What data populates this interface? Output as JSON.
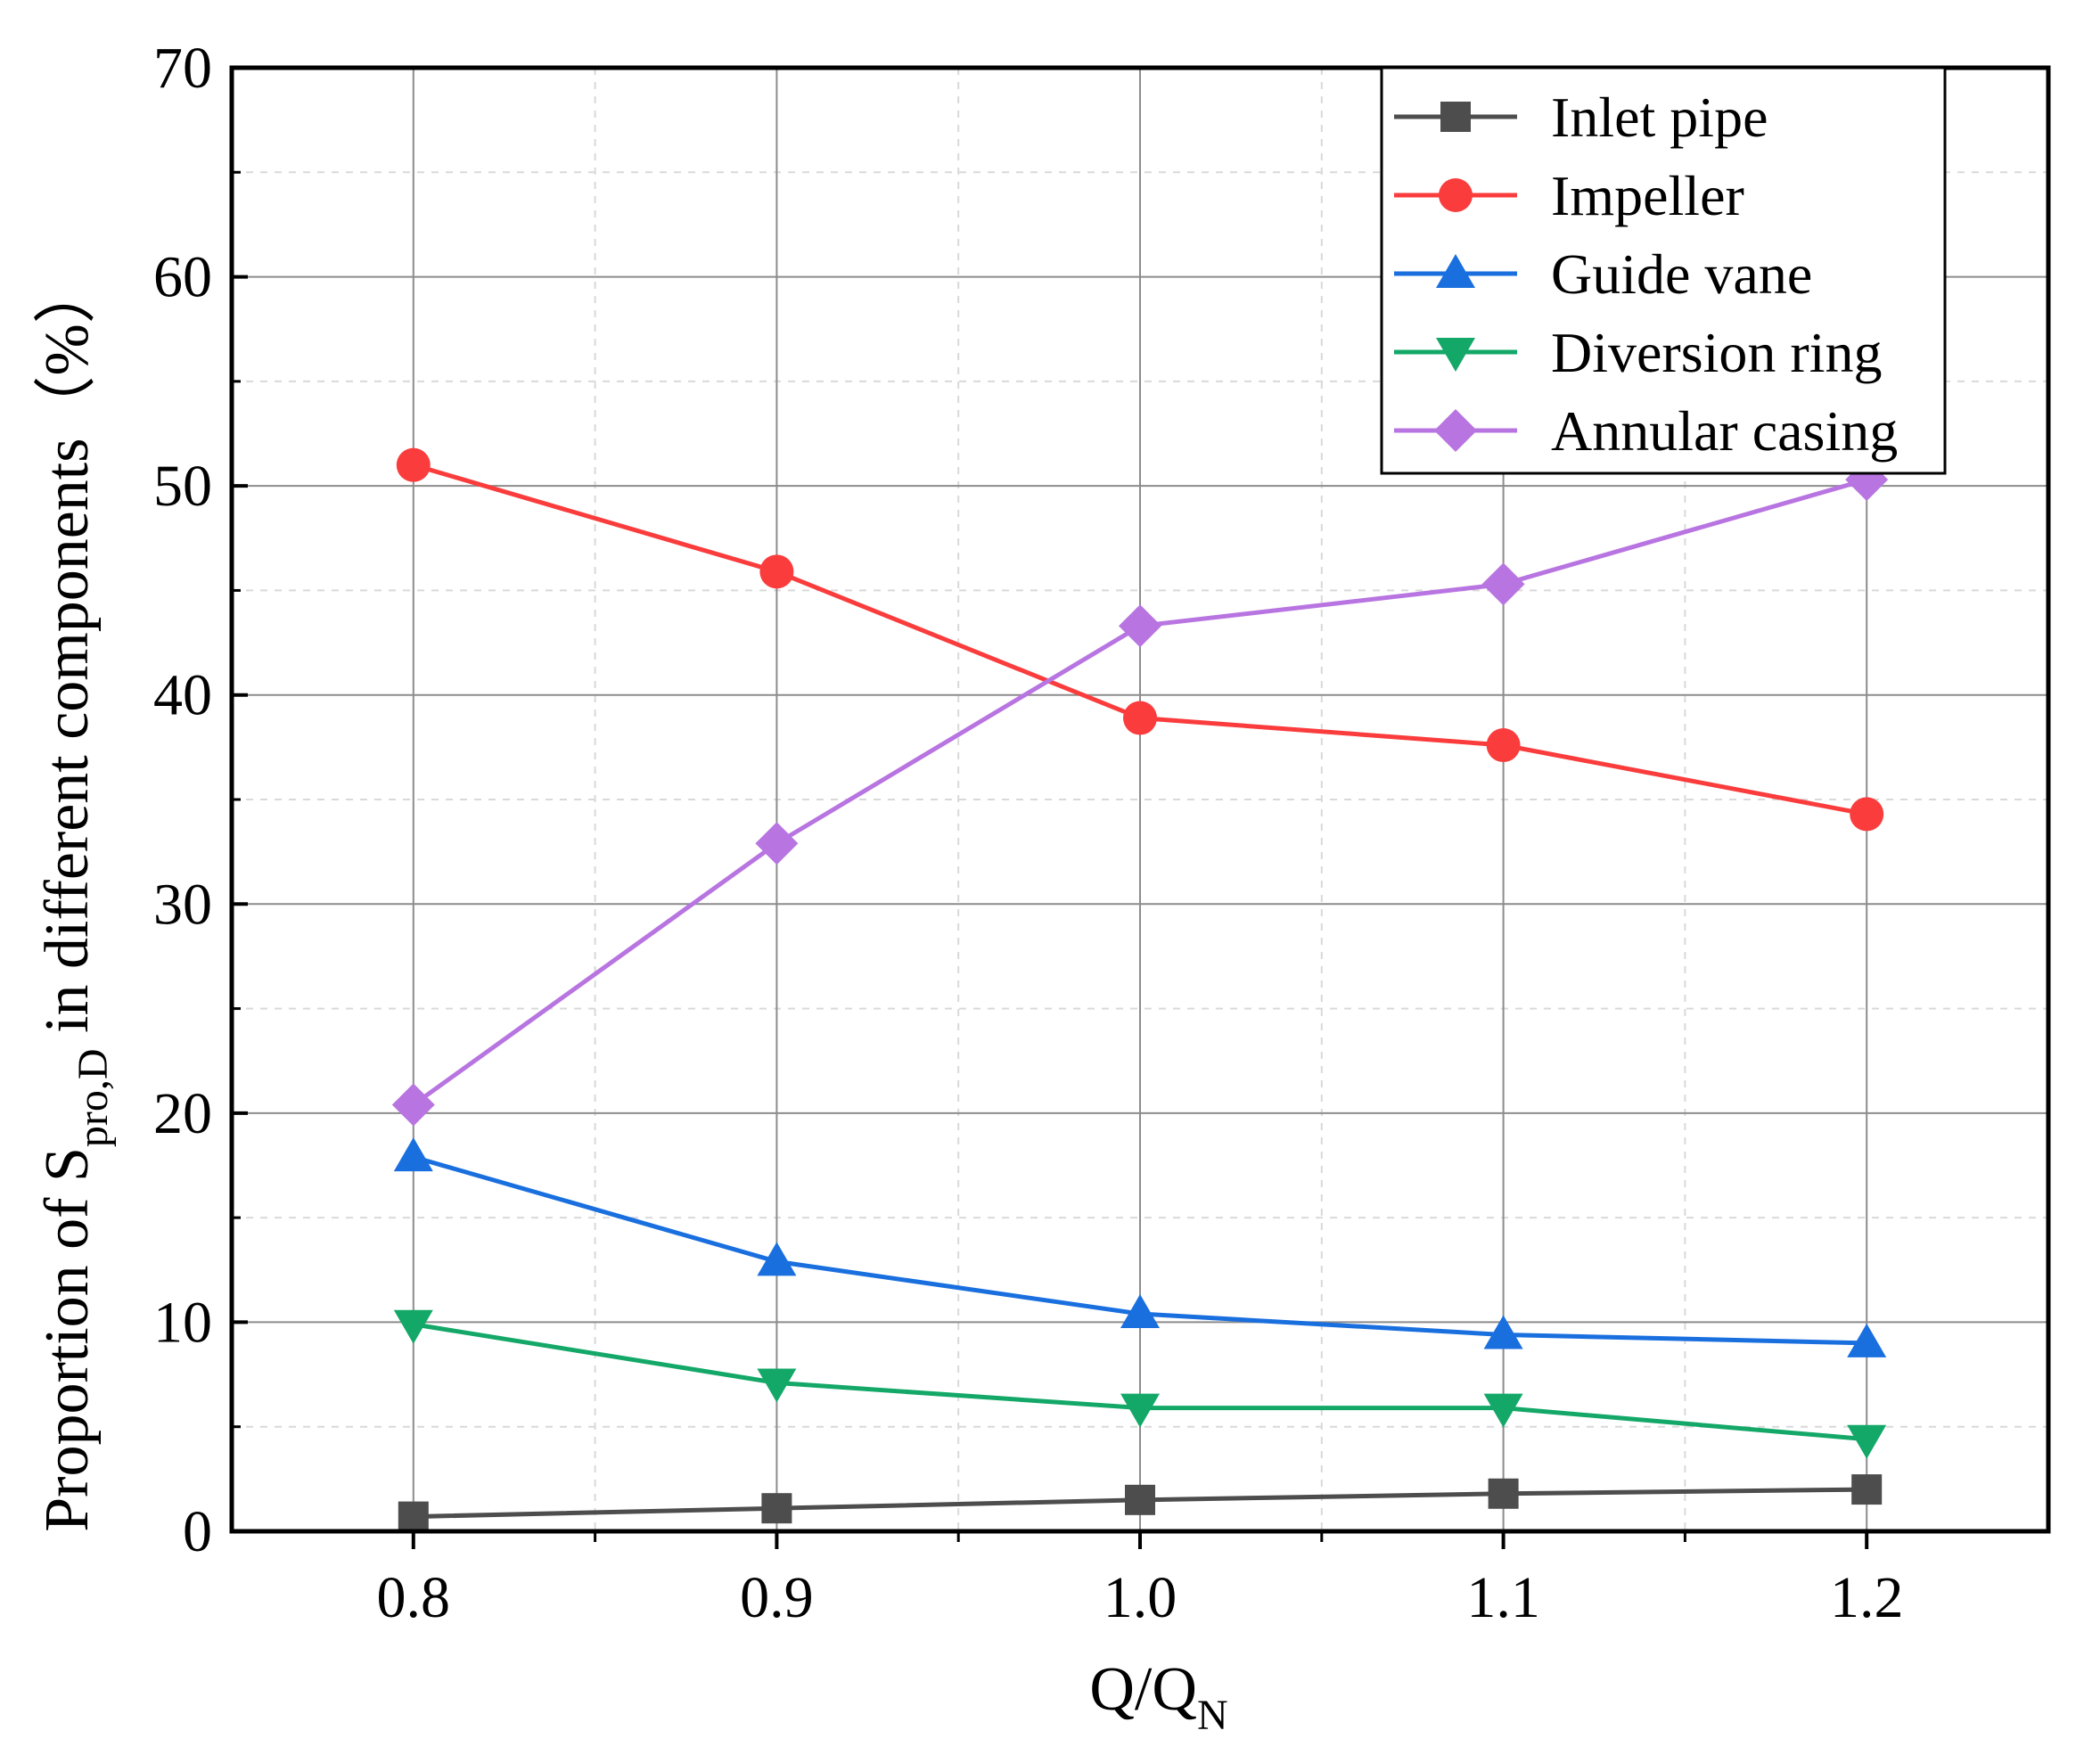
{
  "chart_data": {
    "type": "line",
    "title": "",
    "xlabel": {
      "main": "Q/Q",
      "sub": "N"
    },
    "ylabel": {
      "prefix": "Proportion of S",
      "sub": "pro,D",
      "suffix": " in different components（%）"
    },
    "x": [
      0.8,
      0.9,
      1.0,
      1.1,
      1.2
    ],
    "xticks": [
      0.8,
      0.9,
      1.0,
      1.1,
      1.2
    ],
    "xtick_labels": [
      "0.8",
      "0.9",
      "1.0",
      "1.1",
      "1.2"
    ],
    "xlim": [
      0.75,
      1.25
    ],
    "yticks": [
      0,
      10,
      20,
      30,
      40,
      50,
      60,
      70
    ],
    "ytick_labels": [
      "0",
      "10",
      "20",
      "30",
      "40",
      "50",
      "60",
      "70"
    ],
    "ylim": [
      0,
      70
    ],
    "grid": true,
    "legend_position": "top-right",
    "series": [
      {
        "name": "Inlet pipe",
        "color": "#4d4d4d",
        "marker": "square",
        "values": [
          0.7,
          1.1,
          1.5,
          1.8,
          2.0
        ]
      },
      {
        "name": "Impeller",
        "color": "#fa3c3c",
        "marker": "circle",
        "values": [
          51.0,
          45.9,
          38.9,
          37.6,
          34.3
        ]
      },
      {
        "name": "Guide vane",
        "color": "#1a6fdf",
        "marker": "triangle-up",
        "values": [
          17.9,
          12.9,
          10.4,
          9.4,
          9.0
        ]
      },
      {
        "name": "Diversion ring",
        "color": "#14a868",
        "marker": "triangle-down",
        "values": [
          9.9,
          7.1,
          5.9,
          5.9,
          4.4
        ]
      },
      {
        "name": "Annular casing",
        "color": "#b875e1",
        "marker": "diamond",
        "values": [
          20.4,
          32.9,
          43.3,
          45.3,
          50.3
        ]
      }
    ]
  }
}
